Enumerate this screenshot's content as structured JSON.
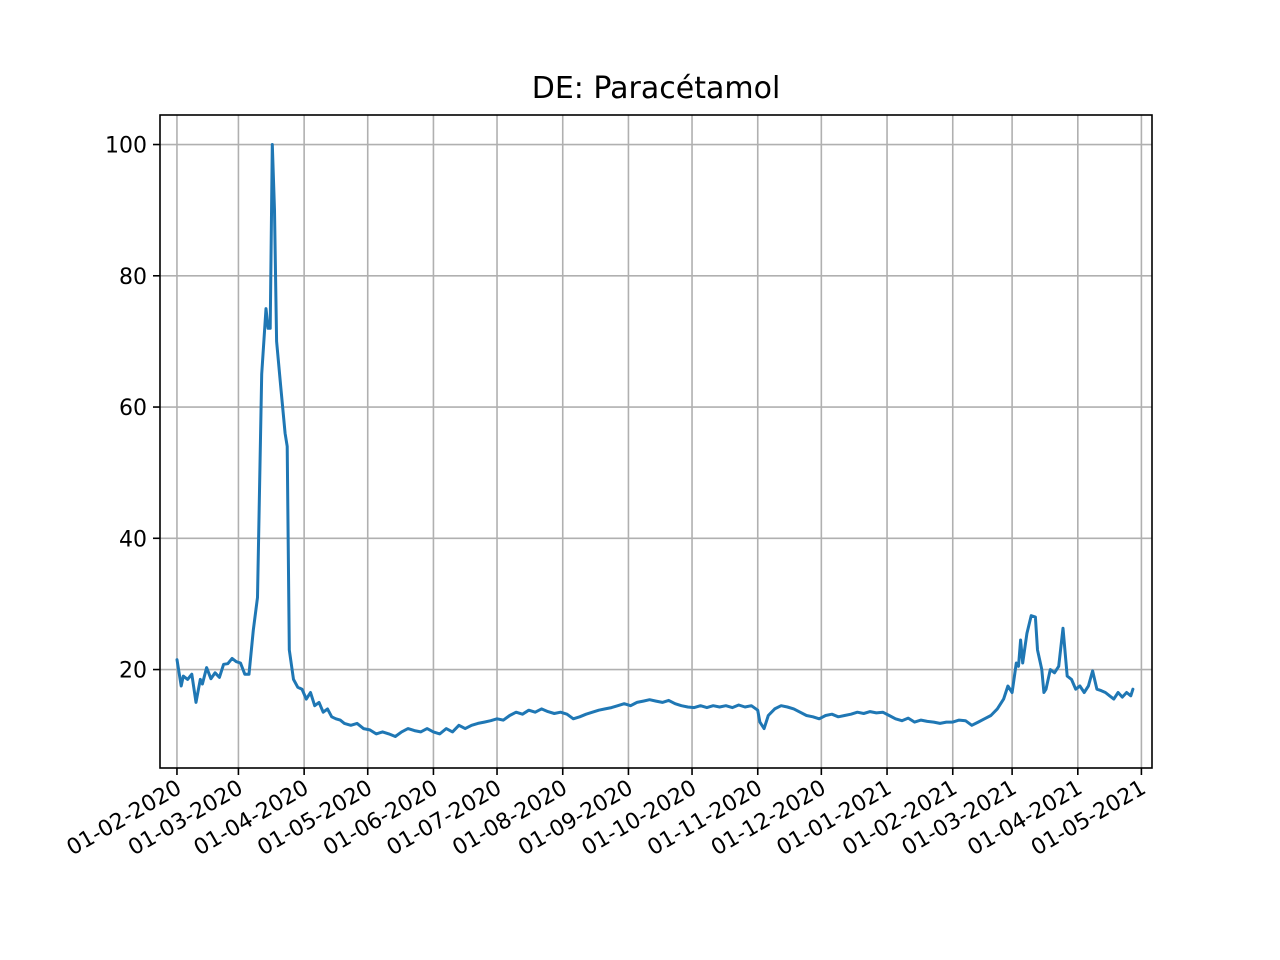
{
  "chart_data": {
    "type": "line",
    "title": "DE: Paracétamol",
    "xlabel": "",
    "ylabel": "",
    "grid": true,
    "legend": "none",
    "colors": {
      "series": "#1f77b4"
    },
    "xlim": [
      "2020-01-24",
      "2021-05-06"
    ],
    "ylim": [
      5,
      104.5
    ],
    "y_ticks": [
      20,
      40,
      60,
      80,
      100
    ],
    "x_ticks": [
      "2020-02-01",
      "2020-03-01",
      "2020-04-01",
      "2020-05-01",
      "2020-06-01",
      "2020-07-01",
      "2020-08-01",
      "2020-09-01",
      "2020-10-01",
      "2020-11-01",
      "2020-12-01",
      "2021-01-01",
      "2021-02-01",
      "2021-03-01",
      "2021-04-01",
      "2021-05-01"
    ],
    "x_tick_labels": [
      "01-02-2020",
      "01-03-2020",
      "01-04-2020",
      "01-05-2020",
      "01-06-2020",
      "01-07-2020",
      "01-08-2020",
      "01-09-2020",
      "01-10-2020",
      "01-11-2020",
      "01-12-2020",
      "01-01-2021",
      "01-02-2021",
      "01-03-2021",
      "01-04-2021",
      "01-05-2021"
    ],
    "series": [
      {
        "points": [
          [
            "2020-02-01",
            21.5
          ],
          [
            "2020-02-03",
            17.5
          ],
          [
            "2020-02-04",
            19
          ],
          [
            "2020-02-06",
            18.5
          ],
          [
            "2020-02-08",
            19.3
          ],
          [
            "2020-02-10",
            15
          ],
          [
            "2020-02-12",
            18.5
          ],
          [
            "2020-02-13",
            17.8
          ],
          [
            "2020-02-15",
            20.3
          ],
          [
            "2020-02-17",
            18.6
          ],
          [
            "2020-02-19",
            19.5
          ],
          [
            "2020-02-21",
            18.8
          ],
          [
            "2020-02-23",
            20.8
          ],
          [
            "2020-02-25",
            20.9
          ],
          [
            "2020-02-27",
            21.7
          ],
          [
            "2020-02-29",
            21.2
          ],
          [
            "2020-03-02",
            21
          ],
          [
            "2020-03-04",
            19.3
          ],
          [
            "2020-03-06",
            19.3
          ],
          [
            "2020-03-08",
            26
          ],
          [
            "2020-03-10",
            31
          ],
          [
            "2020-03-12",
            65
          ],
          [
            "2020-03-14",
            75
          ],
          [
            "2020-03-15",
            72
          ],
          [
            "2020-03-16",
            72
          ],
          [
            "2020-03-17",
            100
          ],
          [
            "2020-03-18",
            90
          ],
          [
            "2020-03-19",
            70
          ],
          [
            "2020-03-21",
            63
          ],
          [
            "2020-03-23",
            56
          ],
          [
            "2020-03-24",
            54
          ],
          [
            "2020-03-25",
            23
          ],
          [
            "2020-03-27",
            18.5
          ],
          [
            "2020-03-29",
            17.3
          ],
          [
            "2020-03-31",
            17
          ],
          [
            "2020-04-02",
            15.5
          ],
          [
            "2020-04-04",
            16.5
          ],
          [
            "2020-04-06",
            14.5
          ],
          [
            "2020-04-08",
            15
          ],
          [
            "2020-04-10",
            13.5
          ],
          [
            "2020-04-12",
            14
          ],
          [
            "2020-04-14",
            12.8
          ],
          [
            "2020-04-16",
            12.5
          ],
          [
            "2020-04-18",
            12.3
          ],
          [
            "2020-04-20",
            11.8
          ],
          [
            "2020-04-23",
            11.5
          ],
          [
            "2020-04-26",
            11.8
          ],
          [
            "2020-04-29",
            11
          ],
          [
            "2020-05-02",
            10.8
          ],
          [
            "2020-05-05",
            10.2
          ],
          [
            "2020-05-08",
            10.5
          ],
          [
            "2020-05-11",
            10.2
          ],
          [
            "2020-05-14",
            9.8
          ],
          [
            "2020-05-17",
            10.5
          ],
          [
            "2020-05-20",
            11
          ],
          [
            "2020-05-23",
            10.7
          ],
          [
            "2020-05-26",
            10.5
          ],
          [
            "2020-05-29",
            11
          ],
          [
            "2020-06-01",
            10.5
          ],
          [
            "2020-06-04",
            10.2
          ],
          [
            "2020-06-07",
            11
          ],
          [
            "2020-06-10",
            10.5
          ],
          [
            "2020-06-13",
            11.5
          ],
          [
            "2020-06-16",
            11
          ],
          [
            "2020-06-19",
            11.5
          ],
          [
            "2020-06-22",
            11.8
          ],
          [
            "2020-06-25",
            12
          ],
          [
            "2020-06-28",
            12.2
          ],
          [
            "2020-07-01",
            12.5
          ],
          [
            "2020-07-04",
            12.3
          ],
          [
            "2020-07-07",
            13
          ],
          [
            "2020-07-10",
            13.5
          ],
          [
            "2020-07-13",
            13.2
          ],
          [
            "2020-07-16",
            13.8
          ],
          [
            "2020-07-19",
            13.5
          ],
          [
            "2020-07-22",
            14
          ],
          [
            "2020-07-25",
            13.6
          ],
          [
            "2020-07-28",
            13.3
          ],
          [
            "2020-07-31",
            13.5
          ],
          [
            "2020-08-03",
            13.2
          ],
          [
            "2020-08-06",
            12.5
          ],
          [
            "2020-08-09",
            12.8
          ],
          [
            "2020-08-12",
            13.2
          ],
          [
            "2020-08-15",
            13.5
          ],
          [
            "2020-08-18",
            13.8
          ],
          [
            "2020-08-21",
            14
          ],
          [
            "2020-08-24",
            14.2
          ],
          [
            "2020-08-27",
            14.5
          ],
          [
            "2020-08-30",
            14.8
          ],
          [
            "2020-09-02",
            14.5
          ],
          [
            "2020-09-05",
            15
          ],
          [
            "2020-09-08",
            15.2
          ],
          [
            "2020-09-11",
            15.4
          ],
          [
            "2020-09-14",
            15.2
          ],
          [
            "2020-09-17",
            15
          ],
          [
            "2020-09-20",
            15.3
          ],
          [
            "2020-09-23",
            14.8
          ],
          [
            "2020-09-26",
            14.5
          ],
          [
            "2020-09-29",
            14.3
          ],
          [
            "2020-10-02",
            14.2
          ],
          [
            "2020-10-05",
            14.5
          ],
          [
            "2020-10-08",
            14.2
          ],
          [
            "2020-10-11",
            14.5
          ],
          [
            "2020-10-14",
            14.3
          ],
          [
            "2020-10-17",
            14.5
          ],
          [
            "2020-10-20",
            14.2
          ],
          [
            "2020-10-23",
            14.6
          ],
          [
            "2020-10-26",
            14.3
          ],
          [
            "2020-10-29",
            14.5
          ],
          [
            "2020-11-01",
            13.8
          ],
          [
            "2020-11-02",
            12
          ],
          [
            "2020-11-04",
            11
          ],
          [
            "2020-11-06",
            13
          ],
          [
            "2020-11-09",
            14
          ],
          [
            "2020-11-12",
            14.5
          ],
          [
            "2020-11-15",
            14.3
          ],
          [
            "2020-11-18",
            14
          ],
          [
            "2020-11-21",
            13.5
          ],
          [
            "2020-11-24",
            13
          ],
          [
            "2020-11-27",
            12.8
          ],
          [
            "2020-11-30",
            12.5
          ],
          [
            "2020-12-03",
            13
          ],
          [
            "2020-12-06",
            13.2
          ],
          [
            "2020-12-09",
            12.8
          ],
          [
            "2020-12-12",
            13
          ],
          [
            "2020-12-15",
            13.2
          ],
          [
            "2020-12-18",
            13.5
          ],
          [
            "2020-12-21",
            13.3
          ],
          [
            "2020-12-24",
            13.6
          ],
          [
            "2020-12-27",
            13.4
          ],
          [
            "2020-12-30",
            13.5
          ],
          [
            "2021-01-02",
            13
          ],
          [
            "2021-01-05",
            12.5
          ],
          [
            "2021-01-08",
            12.2
          ],
          [
            "2021-01-11",
            12.6
          ],
          [
            "2021-01-14",
            12
          ],
          [
            "2021-01-17",
            12.3
          ],
          [
            "2021-01-20",
            12.1
          ],
          [
            "2021-01-23",
            12
          ],
          [
            "2021-01-26",
            11.8
          ],
          [
            "2021-01-29",
            12
          ],
          [
            "2021-02-01",
            12
          ],
          [
            "2021-02-04",
            12.3
          ],
          [
            "2021-02-07",
            12.2
          ],
          [
            "2021-02-10",
            11.5
          ],
          [
            "2021-02-13",
            12
          ],
          [
            "2021-02-16",
            12.5
          ],
          [
            "2021-02-19",
            13
          ],
          [
            "2021-02-22",
            14
          ],
          [
            "2021-02-25",
            15.5
          ],
          [
            "2021-02-27",
            17.5
          ],
          [
            "2021-03-01",
            16.5
          ],
          [
            "2021-03-03",
            21
          ],
          [
            "2021-03-04",
            20.5
          ],
          [
            "2021-03-05",
            24.5
          ],
          [
            "2021-03-06",
            21
          ],
          [
            "2021-03-08",
            25.5
          ],
          [
            "2021-03-10",
            28.2
          ],
          [
            "2021-03-12",
            28
          ],
          [
            "2021-03-13",
            23
          ],
          [
            "2021-03-15",
            20
          ],
          [
            "2021-03-16",
            16.5
          ],
          [
            "2021-03-17",
            17
          ],
          [
            "2021-03-19",
            20
          ],
          [
            "2021-03-21",
            19.5
          ],
          [
            "2021-03-23",
            20.5
          ],
          [
            "2021-03-25",
            26.3
          ],
          [
            "2021-03-27",
            19
          ],
          [
            "2021-03-29",
            18.5
          ],
          [
            "2021-03-31",
            17
          ],
          [
            "2021-04-02",
            17.5
          ],
          [
            "2021-04-04",
            16.5
          ],
          [
            "2021-04-06",
            17.5
          ],
          [
            "2021-04-08",
            19.8
          ],
          [
            "2021-04-10",
            17
          ],
          [
            "2021-04-12",
            16.8
          ],
          [
            "2021-04-14",
            16.5
          ],
          [
            "2021-04-16",
            16
          ],
          [
            "2021-04-18",
            15.5
          ],
          [
            "2021-04-20",
            16.5
          ],
          [
            "2021-04-22",
            15.8
          ],
          [
            "2021-04-24",
            16.5
          ],
          [
            "2021-04-26",
            16
          ],
          [
            "2021-04-27",
            17
          ]
        ]
      }
    ]
  }
}
